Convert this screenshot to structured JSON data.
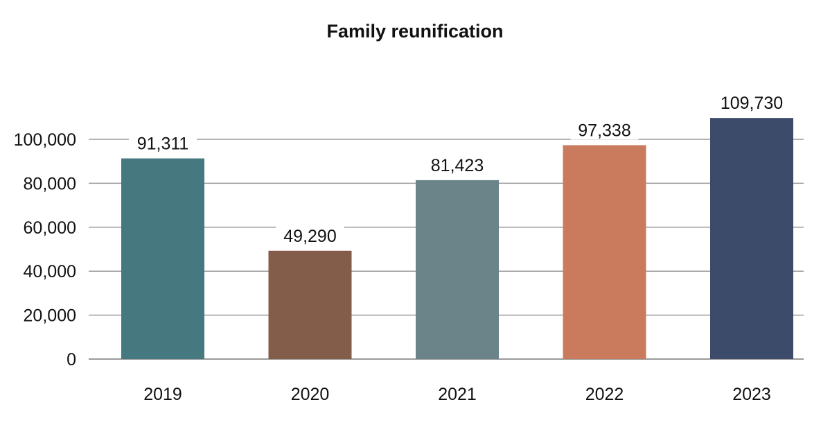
{
  "chart_data": {
    "type": "bar",
    "title": "Family reunification",
    "xlabel": "",
    "ylabel": "",
    "categories": [
      "2019",
      "2020",
      "2021",
      "2022",
      "2023"
    ],
    "values": [
      91311,
      49290,
      81423,
      97338,
      109730
    ],
    "value_labels": [
      "91,311",
      "49,290",
      "81,423",
      "97,338",
      "109,730"
    ],
    "colors": [
      "#467880",
      "#845c4a",
      "#6a8489",
      "#cb7b5d",
      "#3d4b6b"
    ],
    "ylim": [
      0,
      110000
    ],
    "yticks": [
      0,
      20000,
      40000,
      60000,
      80000,
      100000
    ],
    "ytick_labels": [
      "0",
      "20,000",
      "40,000",
      "60,000",
      "80,000",
      "100,000"
    ],
    "grid": true,
    "legend": false
  }
}
